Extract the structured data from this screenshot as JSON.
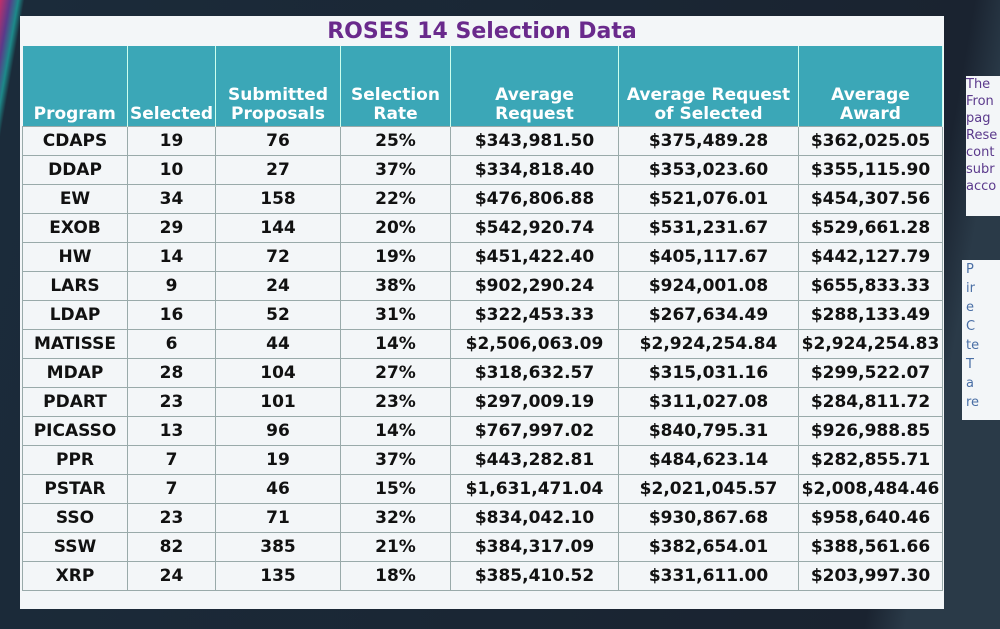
{
  "title": "ROSES 14 Selection Data",
  "table": {
    "headers": [
      "Program",
      "Selected",
      "Submitted Proposals",
      "Selection Rate",
      "Average Request",
      "Average Request of Selected",
      "Average Award"
    ],
    "rows": [
      [
        "CDAPS",
        19,
        76,
        "25%",
        "$343,981.50",
        "$375,489.28",
        "$362,025.05"
      ],
      [
        "DDAP",
        10,
        27,
        "37%",
        "$334,818.40",
        "$353,023.60",
        "$355,115.90"
      ],
      [
        "EW",
        34,
        158,
        "22%",
        "$476,806.88",
        "$521,076.01",
        "$454,307.56"
      ],
      [
        "EXOB",
        29,
        144,
        "20%",
        "$542,920.74",
        "$531,231.67",
        "$529,661.28"
      ],
      [
        "HW",
        14,
        72,
        "19%",
        "$451,422.40",
        "$405,117.67",
        "$442,127.79"
      ],
      [
        "LARS",
        9,
        24,
        "38%",
        "$902,290.24",
        "$924,001.08",
        "$655,833.33"
      ],
      [
        "LDAP",
        16,
        52,
        "31%",
        "$322,453.33",
        "$267,634.49",
        "$288,133.49"
      ],
      [
        "MATISSE",
        6,
        44,
        "14%",
        "$2,506,063.09",
        "$2,924,254.84",
        "$2,924,254.83"
      ],
      [
        "MDAP",
        28,
        104,
        "27%",
        "$318,632.57",
        "$315,031.16",
        "$299,522.07"
      ],
      [
        "PDART",
        23,
        101,
        "23%",
        "$297,009.19",
        "$311,027.08",
        "$284,811.72"
      ],
      [
        "PICASSO",
        13,
        96,
        "14%",
        "$767,997.02",
        "$840,795.31",
        "$926,988.85"
      ],
      [
        "PPR",
        7,
        19,
        "37%",
        "$443,282.81",
        "$484,623.14",
        "$282,855.71"
      ],
      [
        "PSTAR",
        7,
        46,
        "15%",
        "$1,631,471.04",
        "$2,021,045.57",
        "$2,008,484.46"
      ],
      [
        "SSO",
        23,
        71,
        "32%",
        "$834,042.10",
        "$930,867.68",
        "$958,640.46"
      ],
      [
        "SSW",
        82,
        385,
        "21%",
        "$384,317.09",
        "$382,654.01",
        "$388,561.66"
      ],
      [
        "XRP",
        24,
        135,
        "18%",
        "$385,410.52",
        "$331,611.00",
        "$203,997.30"
      ]
    ]
  },
  "side_panel": {
    "lines": [
      "The",
      "Fron",
      "pag",
      "Rese",
      "cont",
      "subr",
      "acco"
    ],
    "bullets": [
      "P",
      "ir",
      "e",
      "C",
      "te",
      "T",
      "a",
      "re"
    ]
  }
}
